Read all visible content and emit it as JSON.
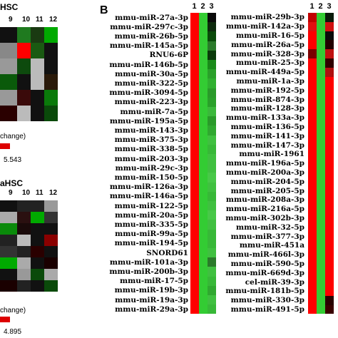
{
  "panel_b_label": "B",
  "left_panel": {
    "title_top": "HSC",
    "title_bottom": "aHSC",
    "col_labels_top": [
      "9",
      "10",
      "11",
      "12"
    ],
    "col_labels_bottom": [
      "9",
      "10",
      "11",
      "12"
    ],
    "legend_top_label": "change)",
    "legend_top_max": "5.543",
    "legend_bottom_label": "change)",
    "legend_bottom_max": "4.895",
    "top_colors": [
      [
        "#111",
        "#1f7a1f",
        "#1a3a12",
        "#0a0"
      ],
      [
        "#888",
        "#ff0000",
        "#1a5a12",
        "#111"
      ],
      [
        "#999",
        "#0d4a0d",
        "#bbb",
        "#111"
      ],
      [
        "#0a5a0a",
        "#111",
        "#bbb",
        "#2a1a0a"
      ],
      [
        "#999",
        "#3a0a0a",
        "#111",
        "#0a7a0a"
      ],
      [
        "#2a0000",
        "#bbb",
        "#111",
        "#0a4a0a"
      ]
    ],
    "bottom_colors": [
      [
        "#111",
        "#222",
        "#222",
        "#999"
      ],
      [
        "#aaa",
        "#2a1010",
        "#0a0",
        "#333"
      ],
      [
        "#0a8a0a",
        "#1a0a0a",
        "#111",
        "#111"
      ],
      [
        "#222",
        "#bbb",
        "#111",
        "#8a0000"
      ],
      [
        "#333",
        "#222",
        "#2a0000",
        "#111"
      ],
      [
        "#0a0",
        "#aaa",
        "#111",
        "#1a0000"
      ],
      [
        "#111",
        "#999",
        "#0a4a0a",
        "#aaa"
      ],
      [
        "#1a0000",
        "#222",
        "#111",
        "#0a4a0a"
      ]
    ]
  },
  "heatmap_left": {
    "col_headers": [
      "1",
      "2",
      "3"
    ],
    "labels": [
      "mmu-miR-27a-3p",
      "mmu-miR-297c-3p",
      "mmu-miR-26b-5p",
      "mmu-miR-145a-5p",
      "RNU6-6P",
      "mmu-miR-146b-5p",
      "mmu-miR-30a-5p",
      "mmu-miR-322-5p",
      "mmu-miR-3094-5p",
      "mmu-miR-223-3p",
      "mmu-miR-7a-5p",
      "mmu-miR-195a-5p",
      "mmu-miR-143-3p",
      "mmu-miR-375-3p",
      "mmu-miR-338-5p",
      "mmu-miR-203-3p",
      "mmu-miR-29c-3p",
      "mmu-miR-150-5p",
      "mmu-miR-126a-3p",
      "mmu-miR-146a-5p",
      "mmu-miR-122-5p",
      "mmu-miR-20a-5p",
      "mmu-miR-335-5p",
      "mmu-miR-99a-5p",
      "mmu-miR-194-5p",
      "SNORD61",
      "mmu-miR-101a-3p",
      "mmu-miR-200b-3p",
      "mmu-miR-17-5p",
      "mmu-miR-19b-3p",
      "mmu-miR-19a-3p",
      "mmu-miR-29a-3p"
    ],
    "col3": [
      "#0a0a0a",
      "#0d2a0d",
      "#0a4a0a",
      "#2a7a2a",
      "#0a3a0a",
      "#1a8a1a",
      "#2aa02a",
      "#30b030",
      "#2a9a2a",
      "#2aa02a",
      "#3cb83c",
      "#2a9a2a",
      "#30a830",
      "#40c040",
      "#38b838",
      "#40c040",
      "#40c040",
      "#48c848",
      "#40c040",
      "#38b838",
      "#40c040",
      "#48c848",
      "#40c040",
      "#38b838",
      "#38b838",
      "#40c040",
      "#2a7a2a",
      "#40c040",
      "#38b838",
      "#30a830",
      "#40c040",
      "#38b838"
    ]
  },
  "heatmap_right": {
    "col_headers": [
      "1",
      "2",
      "3"
    ],
    "labels": [
      "mmu-miR-29b-3p",
      "mmu-miR-142a-3p",
      "mmu-miR-16-5p",
      "mmu-miR-26a-5p",
      "mmu-miR-328-3p",
      "mmu-miR-25-3p",
      "mmu-miR-449a-5p",
      "mmu-miR-1a-3p",
      "mmu-miR-192-5p",
      "mmu-miR-874-3p",
      "mmu-miR-128-3p",
      "mmu-miR-133a-3p",
      "mmu-miR-136-5p",
      "mmu-miR-141-3p",
      "mmu-miR-147-3p",
      "mmu-miR-1961",
      "mmu-miR-196a-5p",
      "mmu-miR-200a-3p",
      "mmu-miR-204-5p",
      "mmu-miR-205-5p",
      "mmu-miR-208a-3p",
      "mmu-miR-216a-5p",
      "mmu-miR-302b-3p",
      "mmu-miR-32-5p",
      "mmu-miR-377-3p",
      "mmu-miR-451a",
      "mmu-miR-466l-3p",
      "mmu-miR-590-5p",
      "mmu-miR-669d-3p",
      "cel-miR-39-3p",
      "mmu-miR-181b-5p",
      "mmu-miR-330-3p",
      "mmu-miR-491-5p"
    ],
    "col1": [
      "#c00000",
      "#e01010",
      "#ff0000",
      "#ff0000",
      "#7a0000",
      "#ff0000",
      "#ff0000",
      "#ff0000",
      "#ff0000",
      "#ff0000",
      "#ff0000",
      "#ff0000",
      "#ff0000",
      "#ff0000",
      "#ff0000",
      "#ff0000",
      "#ff0000",
      "#ff0000",
      "#ff0000",
      "#ff0000",
      "#ff0000",
      "#ff0000",
      "#ff0000",
      "#ff0000",
      "#ff0000",
      "#ff0000",
      "#ff0000",
      "#ff0000",
      "#ff0000",
      "#ff0000",
      "#ff0000",
      "#ff0000",
      "#ff0000"
    ],
    "col3": [
      "#0a1a0a",
      "#d01010",
      "#0a0a0a",
      "#220000",
      "#c01010",
      "#300000",
      "#b01010",
      "#ff0000",
      "#ff0000",
      "#ff0000",
      "#ff0000",
      "#ff0000",
      "#ff0000",
      "#ff0000",
      "#ff0000",
      "#ff0000",
      "#ff0000",
      "#ff0000",
      "#ff0000",
      "#ff0000",
      "#ff0000",
      "#ff0000",
      "#ff0000",
      "#ff0000",
      "#ff0000",
      "#ff0000",
      "#ff0000",
      "#ff0000",
      "#ff0000",
      "#ff0000",
      "#ff0000",
      "#2a0000",
      "#3a0000"
    ]
  }
}
